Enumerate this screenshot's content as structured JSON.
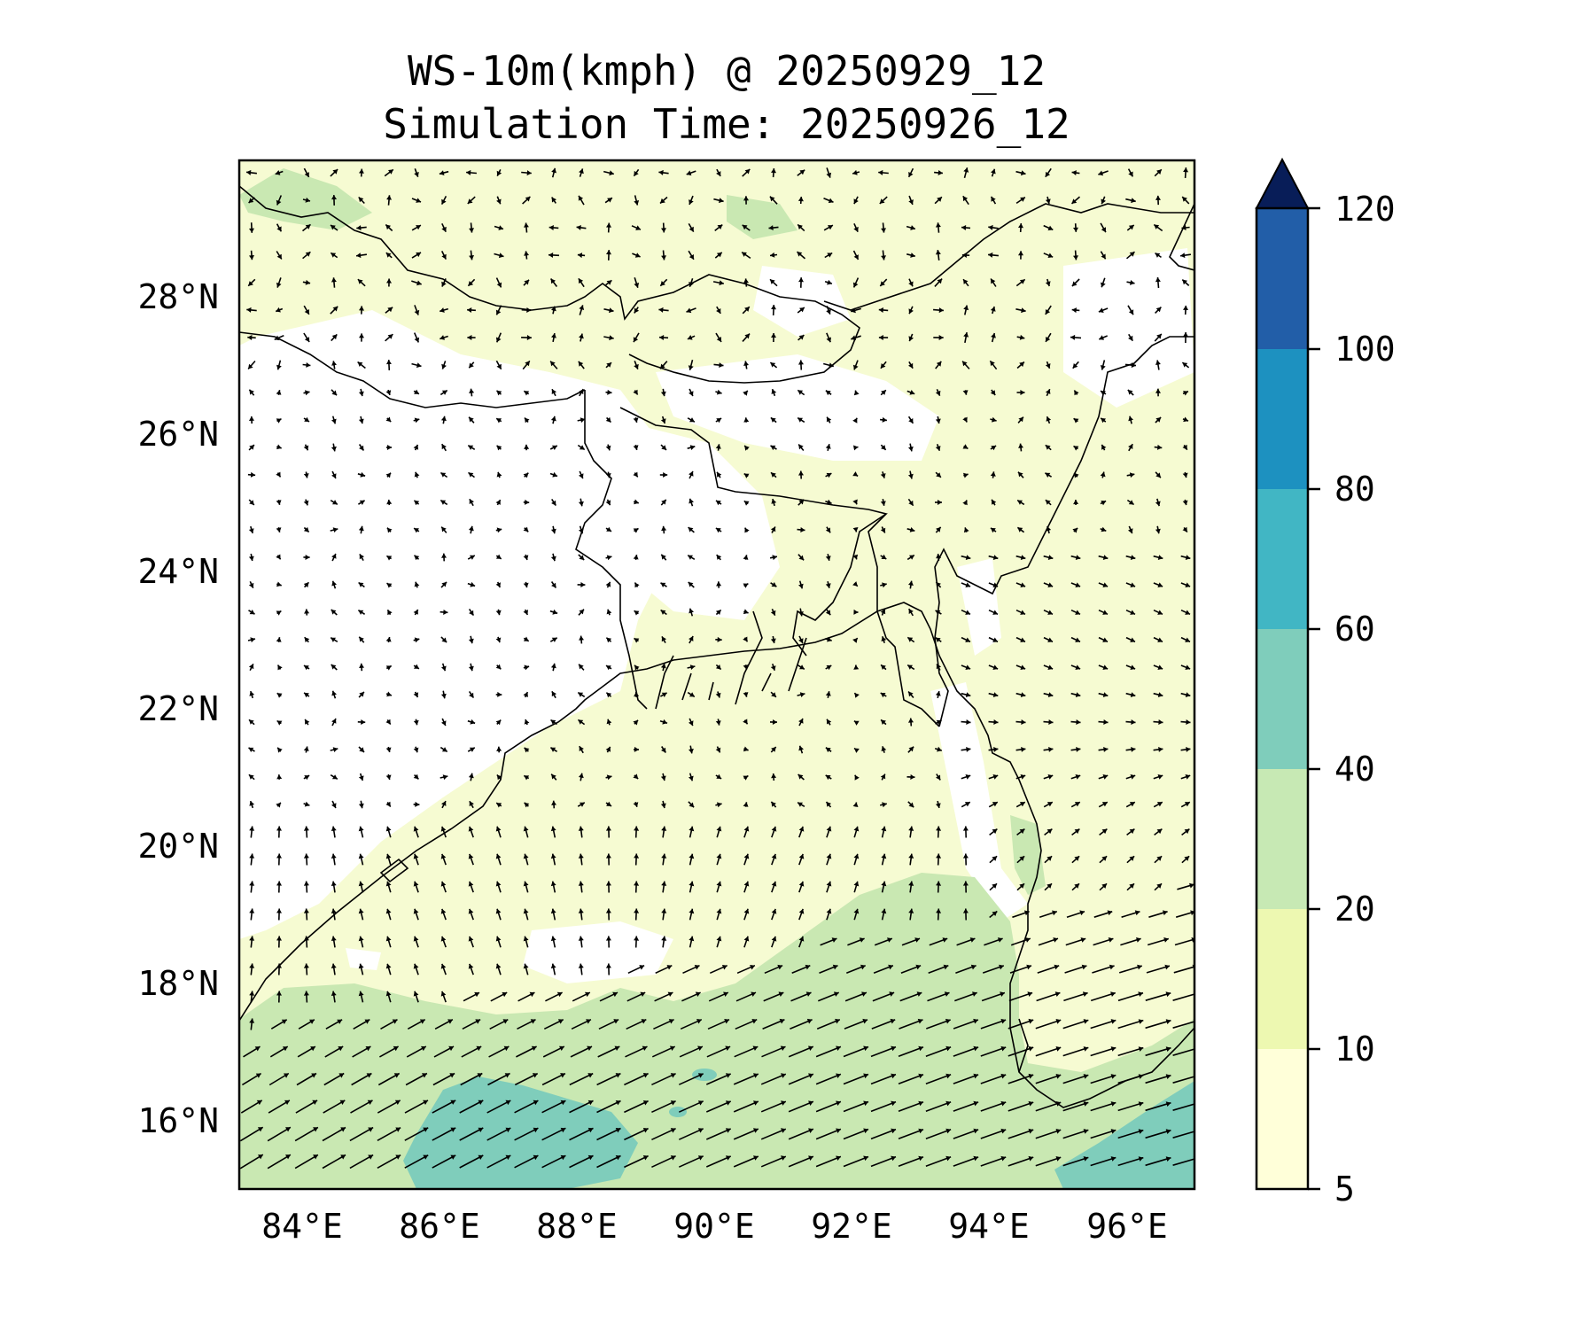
{
  "title": {
    "line1": "WS-10m(kmph) @ 20250929_12",
    "line2": "Simulation Time: 20250926_12"
  },
  "axes": {
    "lon_ticks": [
      "84°E",
      "86°E",
      "88°E",
      "90°E",
      "92°E",
      "94°E",
      "96°E"
    ],
    "lat_ticks": [
      "16°N",
      "18°N",
      "20°N",
      "22°N",
      "24°N",
      "26°N",
      "28°N"
    ],
    "lon_range": [
      83.0,
      96.9
    ],
    "lat_range": [
      15.0,
      29.9
    ]
  },
  "colorbar": {
    "levels": [
      "5",
      "10",
      "20",
      "40",
      "60",
      "80",
      "100",
      "120"
    ],
    "colors": [
      "#ffffd9",
      "#edf8b1",
      "#c7e9b4",
      "#7fcdbb",
      "#41b6c4",
      "#1d91c0",
      "#225ea8",
      "#0c2c84"
    ],
    "extend": "max",
    "extend_color": "#081d58"
  },
  "map": {
    "background_color": "#f6fbd2",
    "calm_color": "#ffffff",
    "strong_wind_color": "#c9e8b2",
    "very_strong_wind_color": "#7fcdbb",
    "coastline_color": "#000000"
  }
}
